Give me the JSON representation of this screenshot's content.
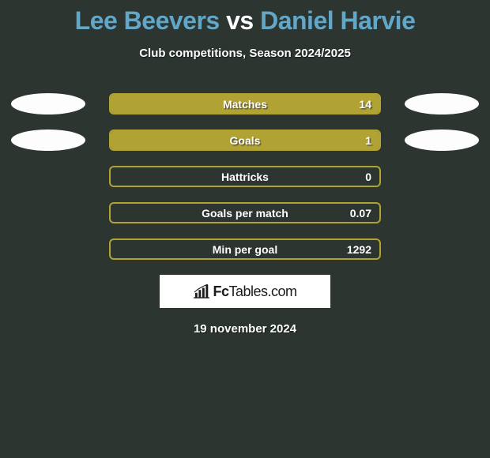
{
  "background_color": "#2d3531",
  "title": {
    "player1": "Lee Beevers",
    "vs": "vs",
    "player2": "Daniel Harvie",
    "player_color": "#62a6c8",
    "vs_color": "#ffffff",
    "fontsize": 32
  },
  "subtitle": {
    "text": "Club competitions, Season 2024/2025",
    "color": "#ffffff",
    "fontsize": 15
  },
  "bar_style": {
    "border_color": "#b1a234",
    "fill_color": "#b1a234",
    "empty_color": "#2d3531",
    "border_radius": 6,
    "height": 27,
    "label_color": "#ffffff",
    "label_fontsize": 14
  },
  "ellipse_style": {
    "width": 94,
    "height": 27,
    "color": "#fdfdfd"
  },
  "stats": [
    {
      "label": "Matches",
      "value_right": "14",
      "fill_pct": 100,
      "fill_side": "right",
      "show_ellipses": true
    },
    {
      "label": "Goals",
      "value_right": "1",
      "fill_pct": 100,
      "fill_side": "right",
      "show_ellipses": true
    },
    {
      "label": "Hattricks",
      "value_right": "0",
      "fill_pct": 0,
      "fill_side": "right",
      "show_ellipses": false
    },
    {
      "label": "Goals per match",
      "value_right": "0.07",
      "fill_pct": 0,
      "fill_side": "right",
      "show_ellipses": false
    },
    {
      "label": "Min per goal",
      "value_right": "1292",
      "fill_pct": 0,
      "fill_side": "right",
      "show_ellipses": false
    }
  ],
  "logo": {
    "text_leading": "Fc",
    "text_trailing": "Tables.com",
    "box_bg": "#ffffff",
    "text_color": "#1a1a1a"
  },
  "date": {
    "text": "19 november 2024",
    "color": "#ffffff",
    "fontsize": 15
  }
}
